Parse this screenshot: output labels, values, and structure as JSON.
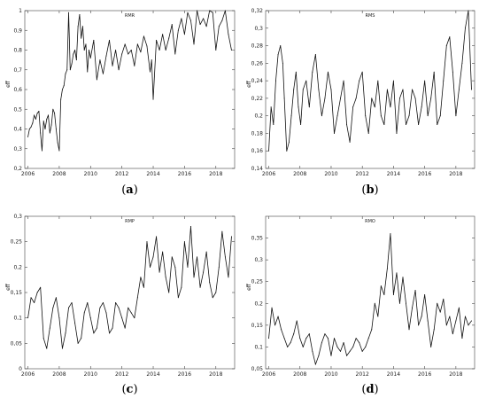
{
  "chart_data": [
    {
      "id": "a",
      "caption": "(a)",
      "type": "line",
      "title": "RMR",
      "ylabel": "eff",
      "xlabel": "",
      "xlim": [
        2005.8,
        2019.2
      ],
      "ylim": [
        0.2,
        1.0
      ],
      "xticks": [
        2006,
        2008,
        2010,
        2012,
        2014,
        2016,
        2018
      ],
      "yticks": [
        0.2,
        0.3,
        0.4,
        0.5,
        0.6,
        0.7,
        0.8,
        0.9,
        1.0
      ],
      "ytick_labels": [
        "0,2",
        "0,3",
        "0,4",
        "0,5",
        "0,6",
        "0,7",
        "0,8",
        "0,9",
        "1"
      ],
      "x": [
        2006.0,
        2006.1,
        2006.2,
        2006.3,
        2006.4,
        2006.5,
        2006.6,
        2006.7,
        2006.8,
        2006.9,
        2007.0,
        2007.1,
        2007.2,
        2007.3,
        2007.4,
        2007.5,
        2007.6,
        2007.7,
        2007.8,
        2007.9,
        2008.0,
        2008.1,
        2008.2,
        2008.3,
        2008.4,
        2008.5,
        2008.6,
        2008.7,
        2008.8,
        2008.9,
        2009.0,
        2009.1,
        2009.2,
        2009.3,
        2009.4,
        2009.5,
        2009.6,
        2009.7,
        2009.8,
        2009.9,
        2010.0,
        2010.2,
        2010.4,
        2010.6,
        2010.8,
        2011.0,
        2011.2,
        2011.4,
        2011.6,
        2011.8,
        2012.0,
        2012.2,
        2012.4,
        2012.6,
        2012.8,
        2013.0,
        2013.2,
        2013.4,
        2013.6,
        2013.8,
        2013.9,
        2014.0,
        2014.2,
        2014.4,
        2014.6,
        2014.8,
        2015.0,
        2015.2,
        2015.4,
        2015.6,
        2015.8,
        2016.0,
        2016.2,
        2016.4,
        2016.6,
        2016.8,
        2017.0,
        2017.2,
        2017.4,
        2017.6,
        2017.8,
        2018.0,
        2018.2,
        2018.4,
        2018.6,
        2018.8,
        2019.0
      ],
      "y": [
        0.36,
        0.4,
        0.41,
        0.43,
        0.47,
        0.45,
        0.48,
        0.49,
        0.38,
        0.29,
        0.44,
        0.4,
        0.45,
        0.47,
        0.38,
        0.42,
        0.5,
        0.48,
        0.4,
        0.33,
        0.29,
        0.55,
        0.6,
        0.62,
        0.68,
        0.7,
        0.99,
        0.7,
        0.73,
        0.78,
        0.8,
        0.75,
        0.92,
        0.98,
        0.86,
        0.92,
        0.8,
        0.83,
        0.69,
        0.8,
        0.76,
        0.85,
        0.65,
        0.75,
        0.68,
        0.77,
        0.85,
        0.72,
        0.8,
        0.7,
        0.78,
        0.83,
        0.78,
        0.8,
        0.72,
        0.83,
        0.79,
        0.87,
        0.82,
        0.69,
        0.75,
        0.55,
        0.85,
        0.8,
        0.88,
        0.8,
        0.86,
        0.93,
        0.78,
        0.9,
        0.96,
        0.88,
        0.99,
        0.95,
        0.83,
        1.0,
        0.93,
        0.96,
        0.92,
        1.0,
        0.99,
        0.8,
        0.92,
        0.95,
        1.0,
        0.88,
        0.8
      ]
    },
    {
      "id": "b",
      "caption": "(b)",
      "type": "line",
      "title": "RMS",
      "ylabel": "eff",
      "xlabel": "",
      "xlim": [
        2005.8,
        2019.2
      ],
      "ylim": [
        0.14,
        0.32
      ],
      "xticks": [
        2006,
        2008,
        2010,
        2012,
        2014,
        2016,
        2018
      ],
      "yticks": [
        0.14,
        0.16,
        0.18,
        0.2,
        0.22,
        0.24,
        0.26,
        0.28,
        0.3,
        0.32
      ],
      "ytick_labels": [
        "0,14",
        "0,16",
        "0,18",
        "0,2",
        "0,22",
        "0,24",
        "0,26",
        "0,28",
        "0,3",
        "0,32"
      ],
      "x": [
        2006.0,
        2006.15,
        2006.3,
        2006.45,
        2006.6,
        2006.75,
        2006.9,
        2007.0,
        2007.15,
        2007.3,
        2007.45,
        2007.6,
        2007.75,
        2007.9,
        2008.05,
        2008.2,
        2008.4,
        2008.6,
        2008.8,
        2009.0,
        2009.2,
        2009.4,
        2009.6,
        2009.8,
        2010.0,
        2010.2,
        2010.4,
        2010.6,
        2010.8,
        2011.0,
        2011.2,
        2011.4,
        2011.6,
        2011.8,
        2012.0,
        2012.2,
        2012.4,
        2012.6,
        2012.8,
        2013.0,
        2013.2,
        2013.4,
        2013.6,
        2013.8,
        2014.0,
        2014.2,
        2014.4,
        2014.6,
        2014.8,
        2015.0,
        2015.2,
        2015.4,
        2015.6,
        2015.8,
        2016.0,
        2016.2,
        2016.4,
        2016.6,
        2016.8,
        2017.0,
        2017.2,
        2017.4,
        2017.6,
        2017.8,
        2018.0,
        2018.2,
        2018.4,
        2018.6,
        2018.8,
        2019.0
      ],
      "y": [
        0.16,
        0.21,
        0.19,
        0.24,
        0.27,
        0.28,
        0.26,
        0.22,
        0.16,
        0.17,
        0.2,
        0.23,
        0.25,
        0.21,
        0.19,
        0.23,
        0.24,
        0.21,
        0.25,
        0.27,
        0.23,
        0.2,
        0.22,
        0.25,
        0.23,
        0.18,
        0.2,
        0.22,
        0.24,
        0.19,
        0.17,
        0.21,
        0.22,
        0.24,
        0.25,
        0.2,
        0.18,
        0.22,
        0.21,
        0.24,
        0.2,
        0.19,
        0.23,
        0.21,
        0.24,
        0.18,
        0.22,
        0.23,
        0.19,
        0.2,
        0.23,
        0.22,
        0.19,
        0.21,
        0.24,
        0.2,
        0.22,
        0.25,
        0.19,
        0.2,
        0.24,
        0.28,
        0.29,
        0.25,
        0.2,
        0.23,
        0.26,
        0.3,
        0.32,
        0.23
      ]
    },
    {
      "id": "c",
      "caption": "(c)",
      "type": "line",
      "title": "RMP",
      "ylabel": "eff",
      "xlabel": "",
      "xlim": [
        2005.8,
        2019.2
      ],
      "ylim": [
        0.0,
        0.3
      ],
      "xticks": [
        2006,
        2008,
        2010,
        2012,
        2014,
        2016,
        2018
      ],
      "yticks": [
        0.0,
        0.05,
        0.1,
        0.15,
        0.2,
        0.25,
        0.3
      ],
      "ytick_labels": [
        "0",
        "0,05",
        "0,1",
        "0,15",
        "0,2",
        "0,25",
        "0,3"
      ],
      "x": [
        2006.0,
        2006.2,
        2006.4,
        2006.6,
        2006.8,
        2007.0,
        2007.2,
        2007.4,
        2007.6,
        2007.8,
        2008.0,
        2008.2,
        2008.4,
        2008.6,
        2008.8,
        2009.0,
        2009.2,
        2009.4,
        2009.6,
        2009.8,
        2010.0,
        2010.2,
        2010.4,
        2010.6,
        2010.8,
        2011.0,
        2011.2,
        2011.4,
        2011.6,
        2011.8,
        2012.0,
        2012.2,
        2012.4,
        2012.6,
        2012.8,
        2013.0,
        2013.2,
        2013.4,
        2013.6,
        2013.8,
        2014.0,
        2014.2,
        2014.4,
        2014.6,
        2014.8,
        2015.0,
        2015.2,
        2015.4,
        2015.6,
        2015.8,
        2016.0,
        2016.2,
        2016.4,
        2016.6,
        2016.8,
        2017.0,
        2017.2,
        2017.4,
        2017.6,
        2017.8,
        2018.0,
        2018.2,
        2018.4,
        2018.6,
        2018.8,
        2019.0
      ],
      "y": [
        0.1,
        0.14,
        0.13,
        0.15,
        0.16,
        0.06,
        0.04,
        0.08,
        0.12,
        0.14,
        0.1,
        0.04,
        0.07,
        0.12,
        0.13,
        0.09,
        0.05,
        0.06,
        0.11,
        0.13,
        0.1,
        0.07,
        0.08,
        0.12,
        0.13,
        0.11,
        0.07,
        0.08,
        0.13,
        0.12,
        0.1,
        0.08,
        0.12,
        0.11,
        0.1,
        0.14,
        0.18,
        0.16,
        0.25,
        0.2,
        0.22,
        0.26,
        0.19,
        0.23,
        0.18,
        0.15,
        0.22,
        0.2,
        0.14,
        0.16,
        0.25,
        0.2,
        0.28,
        0.18,
        0.22,
        0.16,
        0.19,
        0.23,
        0.17,
        0.14,
        0.15,
        0.2,
        0.27,
        0.22,
        0.18,
        0.26
      ]
    },
    {
      "id": "d",
      "caption": "(d)",
      "type": "line",
      "title": "RMO",
      "ylabel": "eff",
      "xlabel": "",
      "xlim": [
        2005.8,
        2019.2
      ],
      "ylim": [
        0.05,
        0.4
      ],
      "xticks": [
        2006,
        2008,
        2010,
        2012,
        2014,
        2016,
        2018
      ],
      "yticks": [
        0.05,
        0.1,
        0.15,
        0.2,
        0.25,
        0.3,
        0.35
      ],
      "ytick_labels": [
        "0,05",
        "0,1",
        "0,15",
        "0,2",
        "0,25",
        "0,3",
        "0,35"
      ],
      "x": [
        2006.0,
        2006.2,
        2006.4,
        2006.6,
        2006.8,
        2007.0,
        2007.2,
        2007.4,
        2007.6,
        2007.8,
        2008.0,
        2008.2,
        2008.4,
        2008.6,
        2008.8,
        2009.0,
        2009.2,
        2009.4,
        2009.6,
        2009.8,
        2010.0,
        2010.2,
        2010.4,
        2010.6,
        2010.8,
        2011.0,
        2011.2,
        2011.4,
        2011.6,
        2011.8,
        2012.0,
        2012.2,
        2012.4,
        2012.6,
        2012.8,
        2013.0,
        2013.2,
        2013.4,
        2013.6,
        2013.8,
        2014.0,
        2014.2,
        2014.4,
        2014.6,
        2014.8,
        2015.0,
        2015.2,
        2015.4,
        2015.6,
        2015.8,
        2016.0,
        2016.2,
        2016.4,
        2016.6,
        2016.8,
        2017.0,
        2017.2,
        2017.4,
        2017.6,
        2017.8,
        2018.0,
        2018.2,
        2018.4,
        2018.6,
        2018.8,
        2019.0
      ],
      "y": [
        0.12,
        0.19,
        0.15,
        0.17,
        0.14,
        0.12,
        0.1,
        0.11,
        0.13,
        0.16,
        0.12,
        0.1,
        0.12,
        0.13,
        0.09,
        0.06,
        0.08,
        0.11,
        0.13,
        0.12,
        0.08,
        0.12,
        0.1,
        0.09,
        0.11,
        0.08,
        0.09,
        0.1,
        0.12,
        0.11,
        0.09,
        0.1,
        0.12,
        0.14,
        0.2,
        0.17,
        0.24,
        0.22,
        0.28,
        0.36,
        0.22,
        0.27,
        0.2,
        0.26,
        0.2,
        0.14,
        0.19,
        0.23,
        0.15,
        0.17,
        0.22,
        0.16,
        0.1,
        0.14,
        0.2,
        0.18,
        0.21,
        0.15,
        0.17,
        0.13,
        0.16,
        0.19,
        0.12,
        0.17,
        0.15,
        0.16
      ]
    }
  ]
}
